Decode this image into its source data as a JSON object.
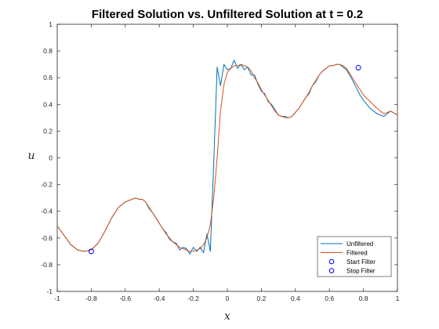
{
  "chart_data": {
    "type": "line",
    "title": "Filtered Solution vs. Unfiltered Solution at t = 0.2",
    "xlabel": "x",
    "ylabel": "u",
    "xlim": [
      -1,
      1
    ],
    "ylim": [
      -1,
      1
    ],
    "xticks": [
      -1,
      -0.8,
      -0.6,
      -0.4,
      -0.2,
      0,
      0.2,
      0.4,
      0.6,
      0.8,
      1
    ],
    "xtick_labels": [
      "-1",
      "-0.8",
      "-0.6",
      "-0.4",
      "-0.2",
      "0",
      "0.2",
      "0.4",
      "0.6",
      "0.8",
      "1"
    ],
    "yticks": [
      -1,
      -0.8,
      -0.6,
      -0.4,
      -0.2,
      0,
      0.2,
      0.4,
      0.6,
      0.8,
      1
    ],
    "ytick_labels": [
      "-1",
      "-0.8",
      "-0.6",
      "-0.4",
      "-0.2",
      "0",
      "0.2",
      "0.4",
      "0.6",
      "0.8",
      "1"
    ],
    "grid": false,
    "legend_position": "bottom-right",
    "series": [
      {
        "name": "Unfiltered",
        "kind": "line",
        "color": "#0072BD",
        "x": [
          -1,
          -0.96,
          -0.92,
          -0.88,
          -0.84,
          -0.8,
          -0.76,
          -0.72,
          -0.68,
          -0.64,
          -0.6,
          -0.56,
          -0.54,
          -0.52,
          -0.5,
          -0.48,
          -0.46,
          -0.44,
          -0.42,
          -0.4,
          -0.38,
          -0.36,
          -0.34,
          -0.32,
          -0.3,
          -0.28,
          -0.26,
          -0.24,
          -0.22,
          -0.2,
          -0.18,
          -0.16,
          -0.14,
          -0.12,
          -0.1,
          -0.08,
          -0.06,
          -0.04,
          -0.02,
          0,
          0.02,
          0.04,
          0.06,
          0.08,
          0.1,
          0.12,
          0.14,
          0.16,
          0.18,
          0.2,
          0.22,
          0.24,
          0.26,
          0.28,
          0.3,
          0.32,
          0.34,
          0.36,
          0.38,
          0.4,
          0.42,
          0.44,
          0.46,
          0.48,
          0.5,
          0.52,
          0.54,
          0.56,
          0.58,
          0.6,
          0.62,
          0.64,
          0.66,
          0.68,
          0.7,
          0.72,
          0.74,
          0.76,
          0.78,
          0.8,
          0.84,
          0.88,
          0.92,
          0.96,
          1
        ],
        "y": [
          -0.51,
          -0.58,
          -0.65,
          -0.69,
          -0.7,
          -0.69,
          -0.64,
          -0.55,
          -0.45,
          -0.37,
          -0.33,
          -0.31,
          -0.3,
          -0.31,
          -0.31,
          -0.33,
          -0.38,
          -0.41,
          -0.45,
          -0.49,
          -0.53,
          -0.56,
          -0.61,
          -0.63,
          -0.64,
          -0.69,
          -0.67,
          -0.68,
          -0.72,
          -0.67,
          -0.7,
          -0.67,
          -0.71,
          -0.57,
          -0.7,
          -0.04,
          0.68,
          0.54,
          0.7,
          0.66,
          0.67,
          0.73,
          0.67,
          0.7,
          0.66,
          0.68,
          0.62,
          0.62,
          0.55,
          0.5,
          0.48,
          0.42,
          0.4,
          0.36,
          0.32,
          0.31,
          0.31,
          0.3,
          0.31,
          0.34,
          0.37,
          0.41,
          0.45,
          0.48,
          0.54,
          0.57,
          0.62,
          0.65,
          0.67,
          0.69,
          0.69,
          0.7,
          0.7,
          0.68,
          0.66,
          0.62,
          0.57,
          0.52,
          0.47,
          0.43,
          0.37,
          0.33,
          0.31,
          0.35,
          0.32
        ]
      },
      {
        "name": "Filtered",
        "kind": "line",
        "color": "#D95319",
        "x": [
          -1,
          -0.96,
          -0.92,
          -0.88,
          -0.84,
          -0.8,
          -0.76,
          -0.72,
          -0.68,
          -0.64,
          -0.6,
          -0.56,
          -0.54,
          -0.52,
          -0.5,
          -0.48,
          -0.46,
          -0.44,
          -0.42,
          -0.4,
          -0.38,
          -0.36,
          -0.34,
          -0.32,
          -0.3,
          -0.28,
          -0.26,
          -0.24,
          -0.22,
          -0.2,
          -0.18,
          -0.16,
          -0.14,
          -0.12,
          -0.1,
          -0.08,
          -0.06,
          -0.04,
          -0.02,
          0,
          0.02,
          0.04,
          0.06,
          0.08,
          0.1,
          0.12,
          0.14,
          0.16,
          0.18,
          0.2,
          0.22,
          0.24,
          0.26,
          0.28,
          0.3,
          0.32,
          0.34,
          0.36,
          0.38,
          0.4,
          0.42,
          0.44,
          0.46,
          0.48,
          0.5,
          0.52,
          0.54,
          0.56,
          0.58,
          0.6,
          0.62,
          0.64,
          0.66,
          0.68,
          0.7,
          0.72,
          0.74,
          0.76,
          0.78,
          0.8,
          0.84,
          0.88,
          0.92,
          0.96,
          1
        ],
        "y": [
          -0.51,
          -0.58,
          -0.65,
          -0.69,
          -0.7,
          -0.69,
          -0.64,
          -0.55,
          -0.45,
          -0.37,
          -0.33,
          -0.31,
          -0.3,
          -0.31,
          -0.31,
          -0.33,
          -0.37,
          -0.41,
          -0.45,
          -0.49,
          -0.53,
          -0.57,
          -0.6,
          -0.63,
          -0.65,
          -0.67,
          -0.68,
          -0.69,
          -0.7,
          -0.7,
          -0.69,
          -0.68,
          -0.65,
          -0.6,
          -0.5,
          -0.3,
          0,
          0.35,
          0.55,
          0.64,
          0.67,
          0.69,
          0.69,
          0.7,
          0.69,
          0.68,
          0.65,
          0.6,
          0.56,
          0.51,
          0.47,
          0.43,
          0.39,
          0.35,
          0.32,
          0.31,
          0.3,
          0.3,
          0.31,
          0.34,
          0.37,
          0.41,
          0.45,
          0.49,
          0.54,
          0.58,
          0.62,
          0.65,
          0.67,
          0.69,
          0.69,
          0.7,
          0.7,
          0.69,
          0.67,
          0.63,
          0.59,
          0.55,
          0.51,
          0.47,
          0.42,
          0.37,
          0.33,
          0.35,
          0.32
        ]
      },
      {
        "name": "Start Filter",
        "kind": "marker",
        "color": "#0000FF",
        "x": [
          -0.8
        ],
        "y": [
          -0.7
        ]
      },
      {
        "name": "Stop Filter",
        "kind": "marker",
        "color": "#0000FF",
        "x": [
          0.77
        ],
        "y": [
          0.675
        ]
      }
    ]
  }
}
